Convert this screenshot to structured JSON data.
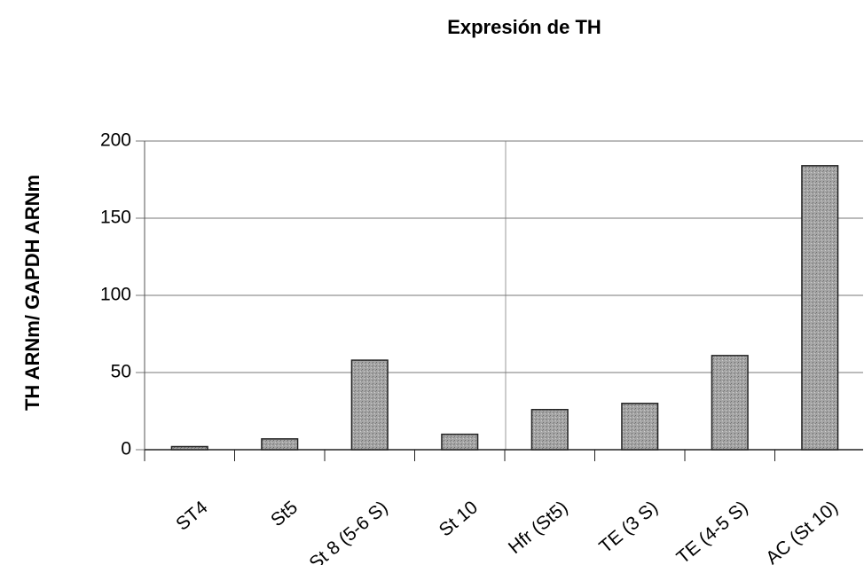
{
  "chart_data": {
    "type": "bar",
    "title": "Expresión de TH",
    "y_label": "TH ARNm/ GAPDH ARNm",
    "categories": [
      "ST4",
      "St5",
      "St 8 (5-6 S)",
      "St 10",
      "Hfr (St5)",
      "TE (3 S)",
      "TE (4-5 S)",
      "AC (St 10)"
    ],
    "values": [
      2,
      7,
      58,
      10,
      26,
      30,
      61,
      184
    ],
    "color": "#9a9a9a",
    "ylim": [
      0,
      200
    ],
    "yticks": [
      0,
      50,
      100,
      150,
      200
    ],
    "grid": true
  }
}
